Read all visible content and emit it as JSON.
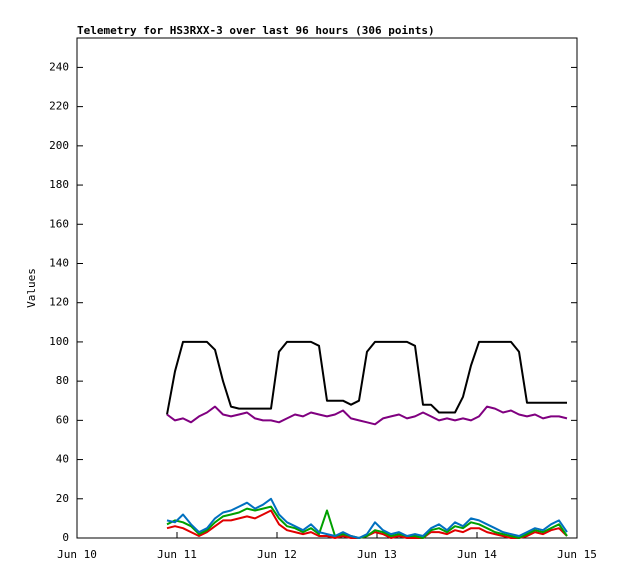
{
  "chart_data": {
    "type": "line",
    "title": "Telemetry for HS3RXX-3 over last 96 hours (306 points)",
    "y_label": "Values",
    "x": [
      10.9,
      10.98,
      11.06,
      11.14,
      11.22,
      11.3,
      11.38,
      11.46,
      11.54,
      11.62,
      11.7,
      11.78,
      11.86,
      11.94,
      12.02,
      12.1,
      12.18,
      12.26,
      12.34,
      12.42,
      12.5,
      12.58,
      12.66,
      12.74,
      12.82,
      12.9,
      12.98,
      13.06,
      13.14,
      13.22,
      13.3,
      13.38,
      13.46,
      13.54,
      13.62,
      13.7,
      13.78,
      13.86,
      13.94,
      14.02,
      14.1,
      14.18,
      14.26,
      14.34,
      14.42,
      14.5,
      14.58,
      14.66,
      14.74,
      14.82,
      14.9
    ],
    "series": [
      {
        "color": "#000000",
        "values": [
          63,
          85,
          100,
          100,
          100,
          100,
          96,
          80,
          67,
          66,
          66,
          66,
          66,
          66,
          95,
          100,
          100,
          100,
          100,
          98,
          70,
          70,
          70,
          68,
          70,
          95,
          100,
          100,
          100,
          100,
          100,
          98,
          68,
          68,
          64,
          64,
          64,
          72,
          88,
          100,
          100,
          100,
          100,
          100,
          95,
          69,
          69,
          69,
          69,
          69,
          69
        ]
      },
      {
        "color": "#800080",
        "values": [
          63,
          60,
          61,
          59,
          62,
          64,
          67,
          63,
          62,
          63,
          64,
          61,
          60,
          60,
          59,
          61,
          63,
          62,
          64,
          63,
          62,
          63,
          65,
          61,
          60,
          59,
          58,
          61,
          62,
          63,
          61,
          62,
          64,
          62,
          60,
          61,
          60,
          61,
          60,
          62,
          67,
          66,
          64,
          65,
          63,
          62,
          63,
          61,
          62,
          62,
          61
        ]
      },
      {
        "color": "#e00000",
        "values": [
          5,
          6,
          5,
          3,
          1,
          3,
          6,
          9,
          9,
          10,
          11,
          10,
          12,
          14,
          7,
          4,
          3,
          2,
          3,
          1,
          1,
          0,
          1,
          0,
          0,
          1,
          3,
          2,
          0,
          1,
          0,
          0,
          0,
          3,
          3,
          2,
          4,
          3,
          5,
          5,
          3,
          2,
          1,
          0,
          0,
          1,
          3,
          2,
          4,
          5,
          1
        ]
      },
      {
        "color": "#00a000",
        "values": [
          7,
          9,
          8,
          6,
          2,
          4,
          8,
          11,
          12,
          13,
          15,
          14,
          15,
          16,
          10,
          6,
          5,
          3,
          5,
          2,
          14,
          1,
          2,
          1,
          0,
          1,
          4,
          3,
          1,
          2,
          1,
          1,
          0,
          4,
          5,
          3,
          6,
          5,
          8,
          7,
          5,
          3,
          2,
          1,
          0,
          2,
          4,
          3,
          5,
          7,
          1
        ]
      },
      {
        "color": "#0070c0",
        "values": [
          9,
          8,
          12,
          7,
          3,
          5,
          10,
          13,
          14,
          16,
          18,
          15,
          17,
          20,
          12,
          8,
          6,
          4,
          7,
          3,
          2,
          1,
          3,
          1,
          0,
          2,
          8,
          4,
          2,
          3,
          1,
          2,
          1,
          5,
          7,
          4,
          8,
          6,
          10,
          9,
          7,
          5,
          3,
          2,
          1,
          3,
          5,
          4,
          7,
          9,
          3
        ]
      }
    ],
    "xlim": [
      10,
      15
    ],
    "xticks": [
      {
        "value": 10,
        "label": "Jun 10"
      },
      {
        "value": 11,
        "label": "Jun 11"
      },
      {
        "value": 12,
        "label": "Jun 12"
      },
      {
        "value": 13,
        "label": "Jun 13"
      },
      {
        "value": 14,
        "label": "Jun 14"
      },
      {
        "value": 15,
        "label": "Jun 15"
      }
    ],
    "ylim": [
      0,
      255
    ],
    "yticks": [
      0,
      20,
      40,
      60,
      80,
      100,
      120,
      140,
      160,
      180,
      200,
      220,
      240
    ]
  }
}
